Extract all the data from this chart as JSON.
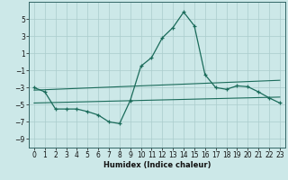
{
  "xlabel": "Humidex (Indice chaleur)",
  "ylabel": "",
  "background_color": "#cce8e8",
  "grid_color": "#aacccc",
  "line_color": "#1a6b5a",
  "x_values": [
    0,
    1,
    2,
    3,
    4,
    5,
    6,
    7,
    8,
    9,
    10,
    11,
    12,
    13,
    14,
    15,
    16,
    17,
    18,
    19,
    20,
    21,
    22,
    23
  ],
  "y_main": [
    -3.0,
    -3.5,
    -5.5,
    -5.5,
    -5.5,
    -5.8,
    -6.2,
    -7.0,
    -7.2,
    -4.5,
    -0.5,
    0.5,
    2.8,
    4.0,
    5.8,
    4.2,
    -1.5,
    -3.0,
    -3.2,
    -2.8,
    -2.9,
    -3.5,
    -4.2,
    -4.8
  ],
  "y_trend1": [
    -3.3,
    -3.25,
    -3.2,
    -3.15,
    -3.1,
    -3.05,
    -3.0,
    -2.95,
    -2.9,
    -2.85,
    -2.8,
    -2.75,
    -2.7,
    -2.65,
    -2.6,
    -2.55,
    -2.5,
    -2.45,
    -2.4,
    -2.35,
    -2.3,
    -2.25,
    -2.2,
    -2.15
  ],
  "y_trend2": [
    -4.8,
    -4.77,
    -4.74,
    -4.71,
    -4.68,
    -4.65,
    -4.62,
    -4.59,
    -4.56,
    -4.53,
    -4.5,
    -4.47,
    -4.44,
    -4.41,
    -4.38,
    -4.35,
    -4.32,
    -4.29,
    -4.26,
    -4.23,
    -4.2,
    -4.17,
    -4.14,
    -4.11
  ],
  "ylim": [
    -10,
    7
  ],
  "xlim": [
    -0.5,
    23.5
  ],
  "yticks": [
    -9,
    -7,
    -5,
    -3,
    -1,
    1,
    3,
    5
  ],
  "xticks": [
    0,
    1,
    2,
    3,
    4,
    5,
    6,
    7,
    8,
    9,
    10,
    11,
    12,
    13,
    14,
    15,
    16,
    17,
    18,
    19,
    20,
    21,
    22,
    23
  ],
  "xlabel_fontsize": 6,
  "tick_labelsize": 5.5
}
